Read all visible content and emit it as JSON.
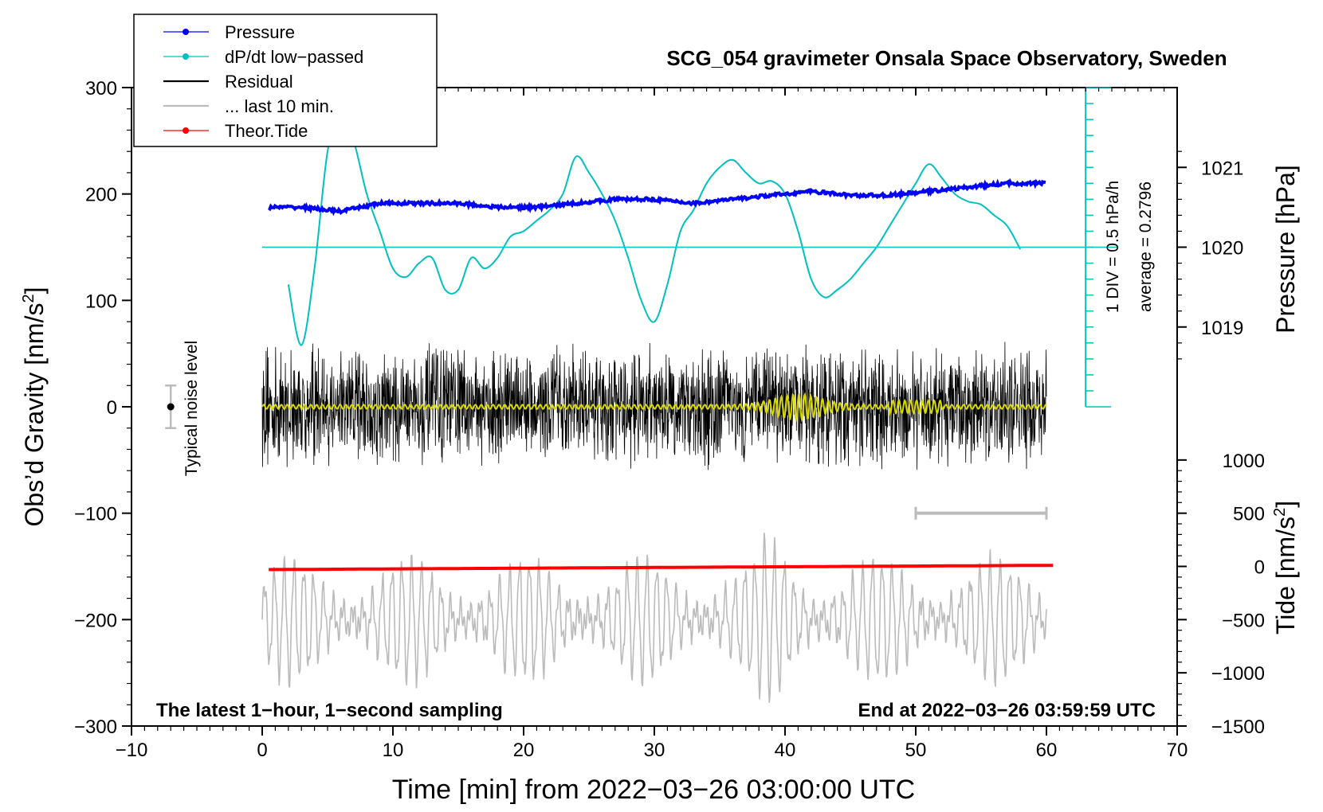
{
  "chart_data": {
    "type": "line",
    "title": "SCG_054 gravimeter Onsala Space Observatory, Sweden",
    "xlabel": "Time [min] from 2022−03−26 03:00:00 UTC",
    "ylabel_left": "Obs’d Gravity [nm/s",
    "ylabel_left_sup": "2",
    "ylabel_left_end": "]",
    "ylabel_right_pressure": "Pressure [hPa]",
    "ylabel_right_tide": "Tide [nm/s",
    "ylabel_right_tide_sup": "2",
    "ylabel_right_tide_end": "]",
    "xlim": [
      -10,
      70
    ],
    "ylim": [
      -300,
      300
    ],
    "x_ticks": [
      -10,
      0,
      10,
      20,
      30,
      40,
      50,
      60,
      70
    ],
    "x_tick_labels": [
      "−10",
      "0",
      "10",
      "20",
      "30",
      "40",
      "50",
      "60",
      "70"
    ],
    "y_ticks": [
      300,
      200,
      100,
      0,
      -100,
      -200,
      -300
    ],
    "y_tick_labels": [
      "300",
      "200",
      "100",
      "0",
      "−100",
      "−200",
      "−300"
    ],
    "pressure_axis": {
      "ticks": [
        1021,
        1020,
        1019
      ],
      "tick_labels": [
        "1021",
        "1020",
        "1019"
      ],
      "ref_value": 1020,
      "ref_gravity": 150,
      "gravity_per_hpa": 75
    },
    "tide_axis": {
      "ticks": [
        1000,
        500,
        0,
        -500,
        -1000,
        -1500
      ],
      "tick_labels": [
        "1000",
        "500",
        "0",
        "−500",
        "−1000",
        "−1500"
      ],
      "gravity_at_zero": -150,
      "gravity_per_unit": 0.1
    },
    "dpdt_scale": {
      "label_div": "1 DIV = 0.5 hPa/h",
      "label_avg": "average = 0.2796",
      "x": 63,
      "zero_gravity": 150,
      "top_gravity": 300,
      "bottom_gravity": 0,
      "divisions": 20
    },
    "legend": [
      {
        "name": "Pressure",
        "color": "#0000ff",
        "marker": true
      },
      {
        "name": "dP/dt low−passed",
        "color": "#00c0c0",
        "marker": true
      },
      {
        "name": "Residual",
        "color": "#000000",
        "marker": false
      },
      {
        "name": "... last 10 min.",
        "color": "#bbbbbb",
        "marker": false
      },
      {
        "name": "Theor.Tide",
        "color": "#ff0000",
        "marker": true
      }
    ],
    "series": [
      {
        "name": "Pressure",
        "color": "#0000ff",
        "x": [
          0,
          3,
          6,
          9,
          12,
          15,
          18,
          21,
          24,
          27,
          30,
          33,
          36,
          39,
          42,
          45,
          48,
          51,
          54,
          57,
          60
        ],
        "values": [
          1020.5,
          1020.5,
          1020.45,
          1020.55,
          1020.55,
          1020.55,
          1020.5,
          1020.5,
          1020.55,
          1020.6,
          1020.6,
          1020.55,
          1020.6,
          1020.65,
          1020.7,
          1020.65,
          1020.65,
          1020.7,
          1020.75,
          1020.8,
          1020.8
        ]
      },
      {
        "name": "dP/dt low−passed",
        "color": "#00c0c0",
        "x": [
          2,
          3,
          4,
          5,
          6,
          7,
          8,
          9,
          10,
          11,
          12,
          13,
          14,
          15,
          16,
          17,
          18,
          19,
          20,
          21,
          22,
          23,
          24,
          25,
          26,
          27,
          28,
          29,
          30,
          31,
          32,
          33,
          34,
          35,
          36,
          37,
          38,
          39,
          40,
          41,
          42,
          43,
          44,
          45,
          46,
          47,
          48,
          49,
          50,
          51,
          52,
          53,
          54,
          55,
          56,
          57,
          58
        ],
        "values": [
          115,
          58,
          130,
          240,
          280,
          250,
          200,
          165,
          130,
          122,
          135,
          140,
          110,
          110,
          140,
          130,
          140,
          160,
          165,
          175,
          185,
          200,
          235,
          220,
          200,
          175,
          140,
          100,
          80,
          115,
          165,
          185,
          210,
          225,
          232,
          220,
          210,
          212,
          200,
          165,
          120,
          103,
          110,
          120,
          135,
          150,
          170,
          190,
          210,
          228,
          215,
          200,
          193,
          190,
          180,
          170,
          148
        ]
      },
      {
        "name": "Residual",
        "color": "#000000",
        "x": [
          0,
          60
        ],
        "values": [
          0,
          0
        ],
        "amplitude": 45
      },
      {
        "name": "... last 10 min.",
        "color": "#bbbbbb",
        "x": [
          0,
          60
        ],
        "values": [
          -200,
          -200
        ],
        "amplitude": 50
      },
      {
        "name": "Theor.Tide",
        "color": "#ff0000",
        "x": [
          0,
          60
        ],
        "values": [
          -30,
          10
        ]
      }
    ],
    "annotations": {
      "bottom_left": "The latest 1−hour, 1−second sampling",
      "bottom_right": "End at 2022−03−26 03:59:59 UTC",
      "noise_label": "Typical noise level",
      "noise_x": -7,
      "noise_half_range": 20,
      "last_window_x": [
        50,
        60
      ],
      "last_window_y": -100
    }
  }
}
